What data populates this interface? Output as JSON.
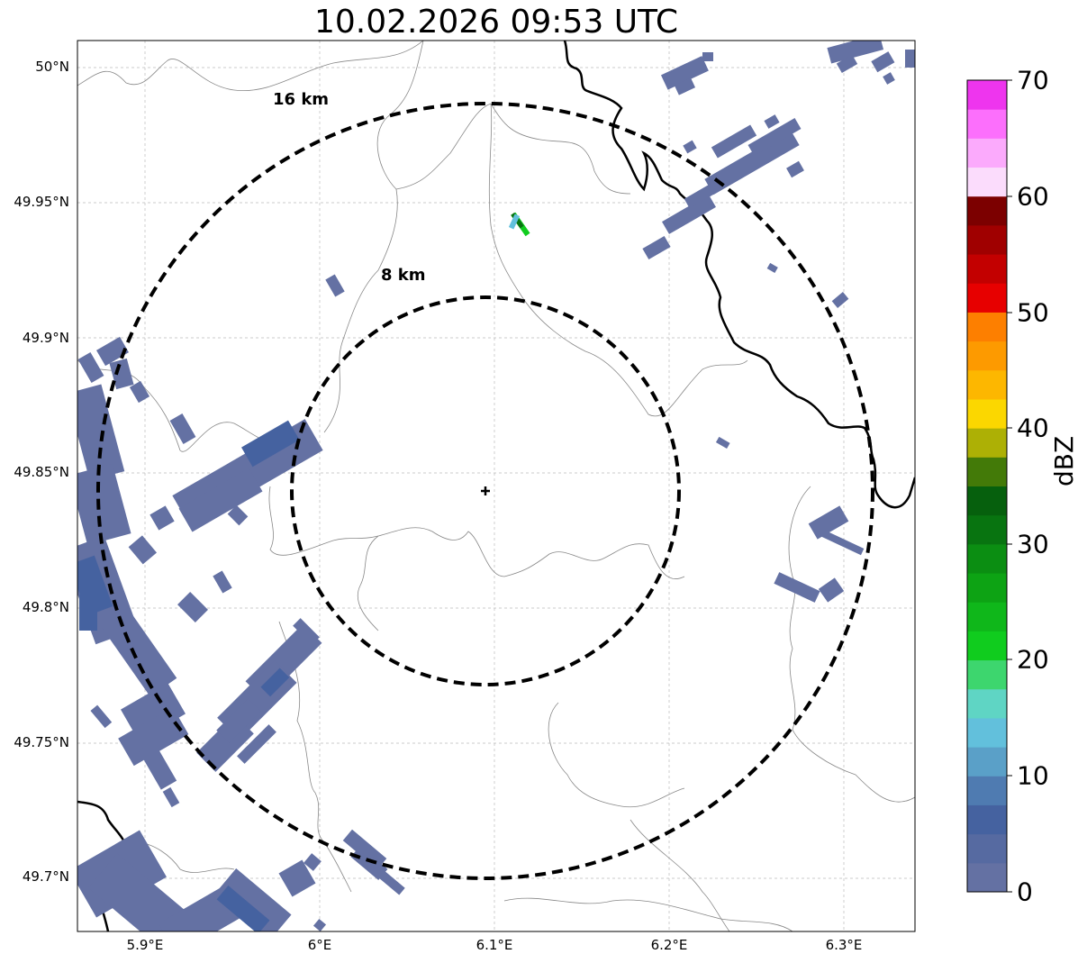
{
  "title": "10.02.2026 09:53 UTC",
  "map": {
    "lat_labels": [
      "50°N",
      "49.95°N",
      "49.9°N",
      "49.85°N",
      "49.8°N",
      "49.75°N",
      "49.7°N"
    ],
    "lon_labels": [
      "5.9°E",
      "6°E",
      "6.1°E",
      "6.2°E",
      "6.3°E"
    ],
    "ring_labels": [
      "16 km",
      "8 km"
    ],
    "center_marker": "+"
  },
  "colorbar": {
    "label": "dBZ",
    "ticks": [
      "70",
      "60",
      "50",
      "40",
      "30",
      "20",
      "10",
      "0"
    ],
    "colors": [
      "#6471a3",
      "#566aa1",
      "#4562a0",
      "#4f7bb1",
      "#5aa0c8",
      "#62c0dc",
      "#5fd5c4",
      "#3dd66e",
      "#10cc1e",
      "#0fb71a",
      "#0da314",
      "#0b8e12",
      "#087410",
      "#06600d",
      "#437a08",
      "#adb005",
      "#fbd700",
      "#fdb700",
      "#fd9a00",
      "#fd7f00",
      "#e70000",
      "#c30000",
      "#a00000",
      "#7c0000",
      "#fbdcfc",
      "#fbaafc",
      "#fc6ffc",
      "#ee35ee"
    ]
  },
  "colors": {
    "echo_light": "#6471a3",
    "echo_mid": "#4562a0",
    "echo_cyan": "#62c0dc",
    "echo_green": "#10cc1e",
    "echo_darkgreen": "#087410"
  }
}
